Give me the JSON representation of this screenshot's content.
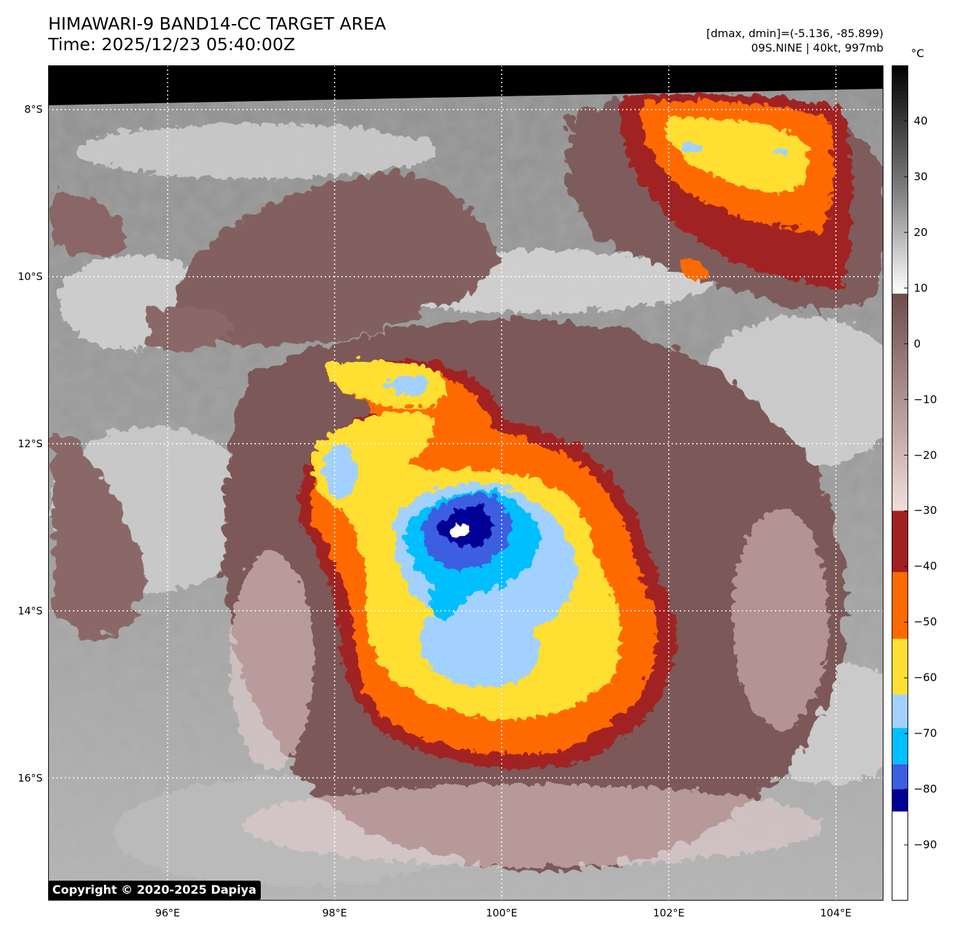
{
  "header": {
    "title_line1": "HIMAWARI-9 BAND14-CC TARGET AREA",
    "title_line2": "Time: 2025/12/23 05:40:00Z",
    "info_line1": "[dmax, dmin]=(-5.136, -85.899)",
    "info_line2": "09S.NINE | 40kt, 997mb"
  },
  "map": {
    "lat_labels": [
      {
        "label": "8°S",
        "lat": -8
      },
      {
        "label": "10°S",
        "lat": -10
      },
      {
        "label": "12°S",
        "lat": -12
      },
      {
        "label": "14°S",
        "lat": -14
      },
      {
        "label": "16°S",
        "lat": -16
      }
    ],
    "lon_labels": [
      {
        "label": "96°E",
        "lon": 96
      },
      {
        "label": "98°E",
        "lon": 98
      },
      {
        "label": "100°E",
        "lon": 100
      },
      {
        "label": "102°E",
        "lon": 102
      },
      {
        "label": "104°E",
        "lon": 104
      }
    ],
    "extent": {
      "lon_min": 94.57,
      "lon_max": 104.57,
      "lat_min": -17.47,
      "lat_max": -7.47
    },
    "grid": true,
    "storm_center": {
      "lon": 99.4,
      "lat": -12.95
    },
    "copyright": "Copyright © 2020-2025 Dapiya"
  },
  "colorbar": {
    "unit": "°C",
    "range": [
      -100,
      50
    ],
    "tick_labels": [
      "40",
      "30",
      "20",
      "10",
      "0",
      "−10",
      "−20",
      "−30",
      "−40",
      "−50",
      "−60",
      "−70",
      "−80",
      "−90"
    ],
    "tick_values": [
      40,
      30,
      20,
      10,
      0,
      -10,
      -20,
      -30,
      -40,
      -50,
      -60,
      -70,
      -80,
      -90
    ],
    "palette": {
      "warm_top": "#000000",
      "warm_mid": "#808080",
      "warm_low": "#ffffff",
      "brown_top": "#6e4c4c",
      "brown_low": "#f2dede",
      "band_dark_red": "#a12121",
      "band_orange": "#ff6a00",
      "band_yellow": "#ffdf33",
      "band_light_blue": "#a3d1ff",
      "band_cyan": "#00bfff",
      "band_royal_blue": "#3b5fe0",
      "band_navy": "#000094",
      "band_white": "#ffffff"
    }
  }
}
